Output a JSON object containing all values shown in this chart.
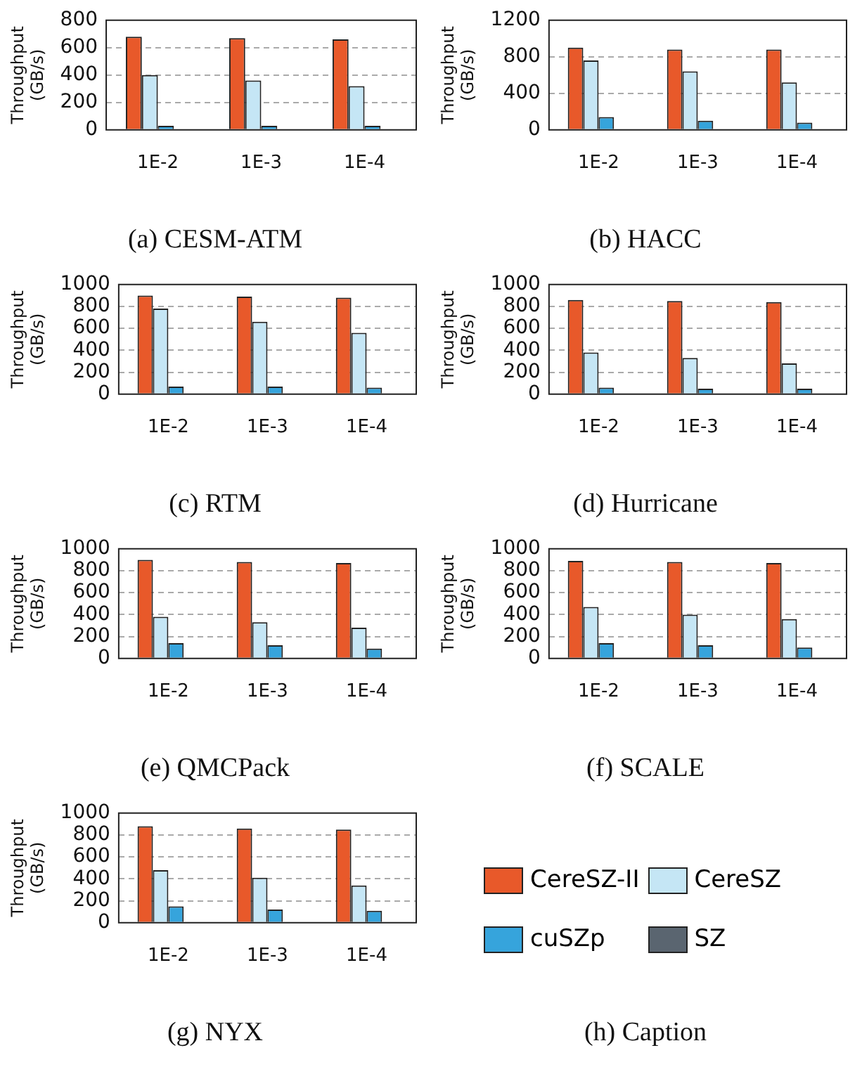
{
  "chart_data": [
    {
      "type": "bar",
      "title": "(a) CESM-ATM",
      "ylabel": "Throughput (GB/s)",
      "categories": [
        "1E-2",
        "1E-3",
        "1E-4"
      ],
      "ylim": [
        0,
        800
      ],
      "yticks": [
        0,
        200,
        400,
        600,
        800
      ],
      "grid": "y",
      "series": [
        {
          "color": "#e8592a",
          "values": [
            680,
            670,
            660
          ]
        },
        {
          "color": "#c5e6f5",
          "values": [
            400,
            360,
            320
          ]
        },
        {
          "color": "#36a4dc",
          "values": [
            30,
            30,
            30
          ]
        },
        {
          "color": "#5a6570",
          "values": [
            0,
            0,
            0
          ]
        }
      ]
    },
    {
      "type": "bar",
      "title": "(b) HACC",
      "ylabel": "Throughput (GB/s)",
      "categories": [
        "1E-2",
        "1E-3",
        "1E-4"
      ],
      "ylim": [
        0,
        1200
      ],
      "yticks": [
        0,
        400,
        800,
        1200
      ],
      "grid": "y",
      "series": [
        {
          "color": "#e8592a",
          "values": [
            900,
            880,
            880
          ]
        },
        {
          "color": "#c5e6f5",
          "values": [
            760,
            640,
            520
          ]
        },
        {
          "color": "#36a4dc",
          "values": [
            140,
            100,
            80
          ]
        },
        {
          "color": "#5a6570",
          "values": [
            0,
            0,
            0
          ]
        }
      ]
    },
    {
      "type": "bar",
      "title": "(c) RTM",
      "ylabel": "Throughput (GB/s)",
      "categories": [
        "1E-2",
        "1E-3",
        "1E-4"
      ],
      "ylim": [
        0,
        1000
      ],
      "yticks": [
        0,
        200,
        400,
        600,
        800,
        1000
      ],
      "grid": "y",
      "series": [
        {
          "color": "#e8592a",
          "values": [
            900,
            890,
            880
          ]
        },
        {
          "color": "#c5e6f5",
          "values": [
            780,
            660,
            560
          ]
        },
        {
          "color": "#36a4dc",
          "values": [
            70,
            70,
            60
          ]
        },
        {
          "color": "#5a6570",
          "values": [
            0,
            0,
            0
          ]
        }
      ]
    },
    {
      "type": "bar",
      "title": "(d) Hurricane",
      "ylabel": "Throughput (GB/s)",
      "categories": [
        "1E-2",
        "1E-3",
        "1E-4"
      ],
      "ylim": [
        0,
        1000
      ],
      "yticks": [
        0,
        200,
        400,
        600,
        800,
        1000
      ],
      "grid": "y",
      "series": [
        {
          "color": "#e8592a",
          "values": [
            860,
            850,
            840
          ]
        },
        {
          "color": "#c5e6f5",
          "values": [
            380,
            330,
            280
          ]
        },
        {
          "color": "#36a4dc",
          "values": [
            60,
            50,
            50
          ]
        },
        {
          "color": "#5a6570",
          "values": [
            0,
            0,
            0
          ]
        }
      ]
    },
    {
      "type": "bar",
      "title": "(e) QMCPack",
      "ylabel": "Throughput (GB/s)",
      "categories": [
        "1E-2",
        "1E-3",
        "1E-4"
      ],
      "ylim": [
        0,
        1000
      ],
      "yticks": [
        0,
        200,
        400,
        600,
        800,
        1000
      ],
      "grid": "y",
      "series": [
        {
          "color": "#e8592a",
          "values": [
            900,
            880,
            870
          ]
        },
        {
          "color": "#c5e6f5",
          "values": [
            380,
            330,
            280
          ]
        },
        {
          "color": "#36a4dc",
          "values": [
            140,
            120,
            90
          ]
        },
        {
          "color": "#5a6570",
          "values": [
            0,
            0,
            0
          ]
        }
      ]
    },
    {
      "type": "bar",
      "title": "(f) SCALE",
      "ylabel": "Throughput (GB/s)",
      "categories": [
        "1E-2",
        "1E-3",
        "1E-4"
      ],
      "ylim": [
        0,
        1000
      ],
      "yticks": [
        0,
        200,
        400,
        600,
        800,
        1000
      ],
      "grid": "y",
      "series": [
        {
          "color": "#e8592a",
          "values": [
            890,
            880,
            870
          ]
        },
        {
          "color": "#c5e6f5",
          "values": [
            470,
            400,
            360
          ]
        },
        {
          "color": "#36a4dc",
          "values": [
            140,
            120,
            100
          ]
        },
        {
          "color": "#5a6570",
          "values": [
            0,
            0,
            0
          ]
        }
      ]
    },
    {
      "type": "bar",
      "title": "(g) NYX",
      "ylabel": "Throughput (GB/s)",
      "categories": [
        "1E-2",
        "1E-3",
        "1E-4"
      ],
      "ylim": [
        0,
        1000
      ],
      "yticks": [
        0,
        200,
        400,
        600,
        800,
        1000
      ],
      "grid": "y",
      "legend": "right",
      "series": [
        {
          "name": "CereSZ-II",
          "color": "#e8592a",
          "values": [
            880,
            860,
            850
          ]
        },
        {
          "name": "CereSZ",
          "color": "#c5e6f5",
          "values": [
            480,
            410,
            340
          ]
        },
        {
          "name": "cuSZp",
          "color": "#36a4dc",
          "values": [
            150,
            120,
            110
          ]
        },
        {
          "name": "SZ",
          "color": "#5a6570",
          "values": [
            0,
            0,
            0
          ]
        }
      ]
    },
    {
      "type": "other",
      "title": "(h) Caption"
    }
  ]
}
